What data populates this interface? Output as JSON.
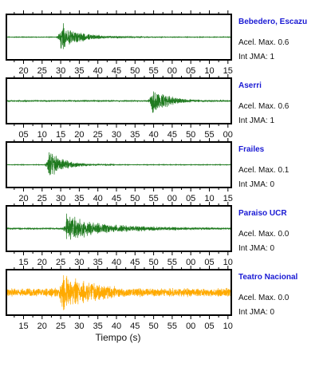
{
  "chart_data": {
    "type": "line",
    "xlabel": "Tiempo (s)",
    "trace_colors": {
      "default": "#1f7a1f",
      "highlight": "#ffaa00"
    },
    "panels": [
      {
        "station": "Bebedero, Escazu",
        "accel_label": "Acel. Max. 0.6",
        "int_label": "Int JMA: 1",
        "color": "#1f7a1f",
        "xtick_labels": [
          "20",
          "25",
          "30",
          "35",
          "40",
          "45",
          "50",
          "55",
          "00",
          "05",
          "10",
          "15"
        ],
        "event": {
          "onset_tick": 2.0,
          "noise": 0.02,
          "peak": 0.85,
          "decay": 0.8,
          "coda": 0.12
        }
      },
      {
        "station": "Aserri",
        "accel_label": "Acel. Max. 0.6",
        "int_label": "Int JMA: 1",
        "color": "#1f7a1f",
        "xtick_labels": [
          "05",
          "10",
          "15",
          "20",
          "25",
          "30",
          "35",
          "40",
          "45",
          "50",
          "55",
          "00"
        ],
        "event": {
          "onset_tick": 6.9,
          "noise": 0.04,
          "peak": 0.95,
          "decay": 0.7,
          "coda": 0.12
        }
      },
      {
        "station": "Frailes",
        "accel_label": "Acel. Max. 0.1",
        "int_label": "Int JMA: 0",
        "color": "#1f7a1f",
        "xtick_labels": [
          "20",
          "25",
          "30",
          "35",
          "40",
          "45",
          "50",
          "55",
          "00",
          "05",
          "10",
          "15"
        ],
        "event": {
          "onset_tick": 1.35,
          "noise": 0.02,
          "peak": 0.95,
          "decay": 0.65,
          "coda": 0.1
        }
      },
      {
        "station": "Paraiso UCR",
        "accel_label": "Acel. Max. 0.0",
        "int_label": "Int JMA: 0",
        "color": "#1f7a1f",
        "xtick_labels": [
          "15",
          "20",
          "25",
          "30",
          "35",
          "40",
          "45",
          "50",
          "55",
          "00",
          "05",
          "10"
        ],
        "event": {
          "onset_tick": 2.3,
          "noise": 0.05,
          "peak": 0.65,
          "decay": 1.3,
          "coda": 0.3
        }
      },
      {
        "station": "Teatro Nacional",
        "accel_label": "Acel. Max. 0.0",
        "int_label": "Int JMA: 0",
        "color": "#ffaa00",
        "xtick_labels": [
          "15",
          "20",
          "25",
          "30",
          "35",
          "40",
          "45",
          "50",
          "55",
          "00",
          "05",
          "10"
        ],
        "event": {
          "onset_tick": 2.0,
          "noise": 0.28,
          "peak": 0.95,
          "decay": 1.6,
          "coda": 0.35
        }
      }
    ]
  }
}
